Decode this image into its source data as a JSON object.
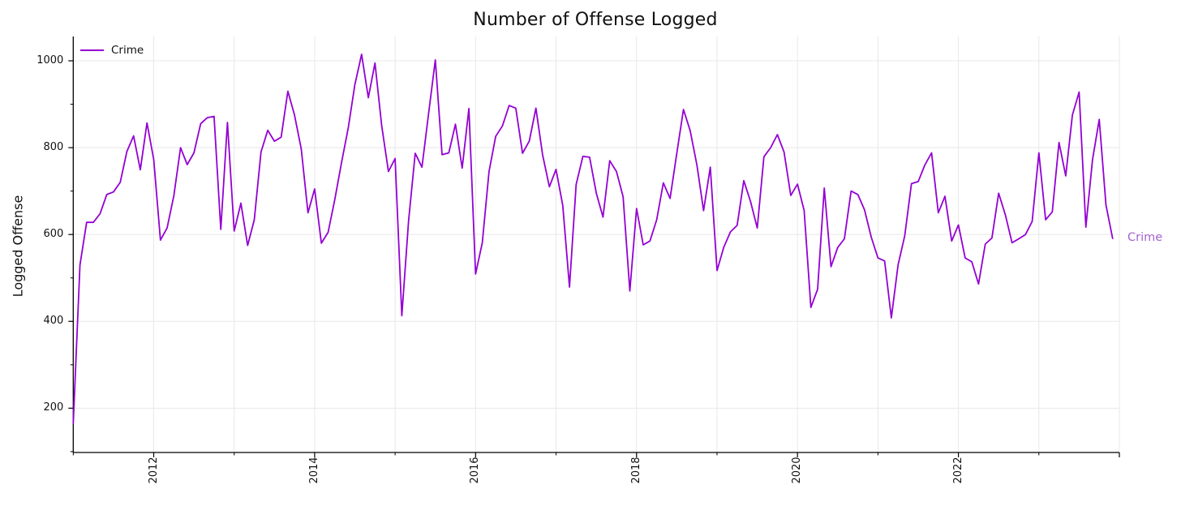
{
  "title": "Number of Offense Logged",
  "legend": {
    "label": "Crime"
  },
  "series_end_label": {
    "text": "Crime",
    "color": "#A663CF"
  },
  "axes": {
    "ylabel": "Logged Offense",
    "y_tick_labels": [
      "200",
      "400",
      "600",
      "800",
      "1000"
    ],
    "x_tick_labels": [
      "2012",
      "2014",
      "2016",
      "2018",
      "2020",
      "2022"
    ]
  },
  "colors": {
    "line": "#9400D3",
    "grid": "#e8e8e8",
    "axis": "#000000",
    "title_text": "#111111",
    "end_label": "#A663CF"
  },
  "chart_data": {
    "type": "line",
    "title": "Number of Offense Logged",
    "xlabel": "",
    "ylabel": "Logged Offense",
    "grid": "on",
    "legend_position": "upper-left",
    "x_start": "2011-01",
    "frequency": "monthly",
    "xlim_years": [
      2011,
      2024
    ],
    "ylim": [
      98,
      1056
    ],
    "y_ticks": [
      200,
      400,
      600,
      800,
      1000
    ],
    "y_minor_ticks": [
      100,
      300,
      500,
      700,
      900
    ],
    "x_major_tick_years": [
      2012,
      2014,
      2016,
      2018,
      2020,
      2022,
      2024
    ],
    "x_labeled_tick_years": [
      2012,
      2014,
      2016,
      2018,
      2020,
      2022
    ],
    "x_minor_tick_years": [
      2011,
      2013,
      2015,
      2017,
      2019,
      2021,
      2023
    ],
    "gridline_years": [
      2012,
      2013,
      2014,
      2015,
      2016,
      2017,
      2018,
      2019,
      2020,
      2021,
      2022,
      2023,
      2024
    ],
    "series": [
      {
        "name": "Crime",
        "color": "#9400D3",
        "values": [
          165,
          530,
          628,
          628,
          648,
          692,
          698,
          720,
          791,
          827,
          749,
          857,
          773,
          587,
          615,
          689,
          800,
          761,
          788,
          855,
          869,
          872,
          612,
          858,
          608,
          672,
          575,
          634,
          790,
          840,
          815,
          824,
          930,
          875,
          797,
          650,
          705,
          580,
          605,
          680,
          765,
          845,
          945,
          1015,
          915,
          995,
          850,
          745,
          775,
          413,
          631,
          787,
          755,
          880,
          1002,
          784,
          788,
          854,
          753,
          890,
          509,
          581,
          745,
          826,
          850,
          897,
          891,
          787,
          815,
          891,
          783,
          710,
          750,
          667,
          479,
          715,
          780,
          778,
          695,
          640,
          770,
          745,
          687,
          470,
          660,
          576,
          585,
          634,
          719,
          683,
          787,
          888,
          839,
          760,
          655,
          755,
          517,
          570,
          606,
          621,
          724,
          676,
          615,
          779,
          800,
          830,
          790,
          690,
          716,
          655,
          432,
          474,
          707,
          526,
          570,
          590,
          700,
          692,
          657,
          594,
          546,
          539,
          408,
          530,
          597,
          717,
          722,
          760,
          788,
          650,
          688,
          585,
          622,
          546,
          537,
          486,
          578,
          592,
          695,
          645,
          581,
          590,
          600,
          630,
          788,
          634,
          652,
          812,
          735,
          875,
          928,
          617,
          772,
          865,
          668,
          591
        ]
      }
    ]
  }
}
